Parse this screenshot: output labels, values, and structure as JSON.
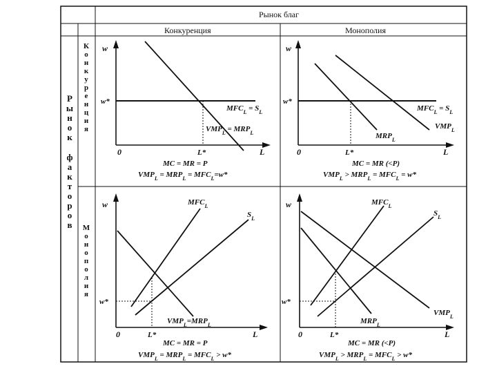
{
  "header": {
    "goods_market": "Рынок благ",
    "competition": "Конкуренция",
    "monopoly": "Монополия"
  },
  "rows": {
    "factor_market": "Рынок факторов",
    "competition_vertical": "Конкуренция",
    "monopoly_vertical": "Монополия"
  },
  "panels": {
    "tl": {
      "axis_w": "w",
      "axis_L": "L",
      "origin": "0",
      "w_star": "w*",
      "L_star": "L*",
      "curve_supply": "MFC_L = S_L",
      "curve_demand": "VMP_L = MRP_L",
      "eq1": "MC = MR = P",
      "eq2": "VMP_L = MRP_L = MFC_L=w*"
    },
    "tr": {
      "axis_w": "w",
      "axis_L": "L",
      "origin": "0",
      "w_star": "w*",
      "L_star": "L*",
      "curve_supply": "MFC_L = S_L",
      "curve_mrp": "MRP_L",
      "curve_vmp": "VMP_L",
      "eq1": "MC = MR (<P)",
      "eq2": "VMP_L > MRP_L = MFC_L = w*"
    },
    "bl": {
      "axis_w": "w",
      "axis_L": "L",
      "origin": "0",
      "w_star": "w*",
      "L_star": "L*",
      "curve_mfc": "MFC_L",
      "curve_supply": "S_L",
      "curve_demand": "VMP_L=MRP_L",
      "eq1": "MC = MR = P",
      "eq2": "VMP_L = MRP_L = MFC_L > w*"
    },
    "br": {
      "axis_w": "w",
      "axis_L": "L",
      "origin": "0",
      "w_star": "w*",
      "L_star": "L*",
      "curve_mfc": "MFC_L",
      "curve_supply": "S_L",
      "curve_mrp": "MRP_L",
      "curve_vmp": "VMP_L",
      "eq1": "MC = MR (<P)",
      "eq2": "VMP_L > MRP_L = MFC_L > w*"
    }
  }
}
